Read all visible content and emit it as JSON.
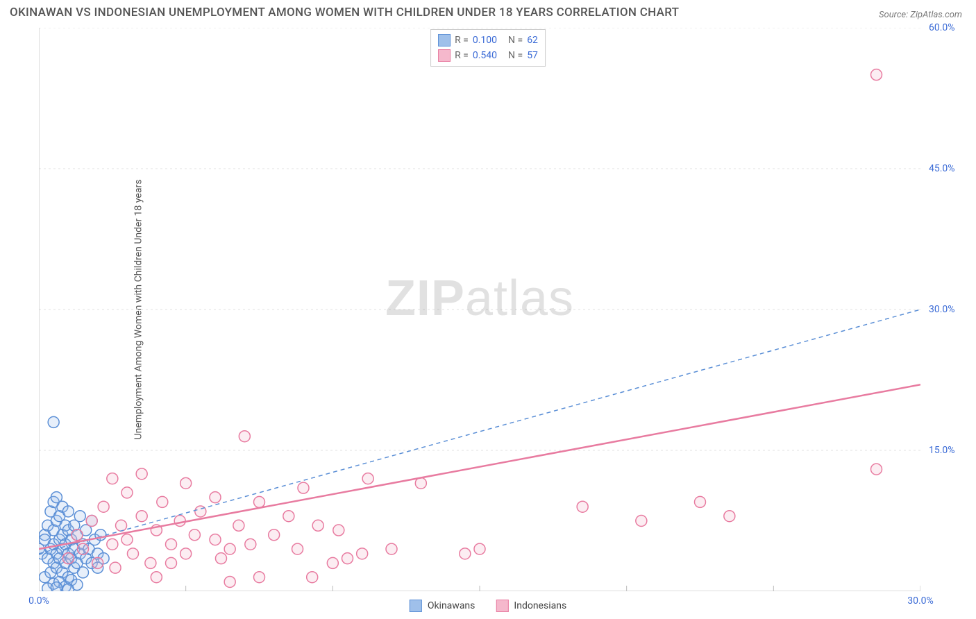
{
  "title": "OKINAWAN VS INDONESIAN UNEMPLOYMENT AMONG WOMEN WITH CHILDREN UNDER 18 YEARS CORRELATION CHART",
  "source": "Source: ZipAtlas.com",
  "ylabel": "Unemployment Among Women with Children Under 18 years",
  "watermark": {
    "bold": "ZIP",
    "rest": "atlas"
  },
  "chart": {
    "type": "scatter",
    "background_color": "#ffffff",
    "grid_color": "#e0e0e0",
    "axis_color": "#bbbbbb",
    "tick_label_color": "#3b6bd6",
    "tick_font_size": 14,
    "xlim": [
      0,
      30
    ],
    "ylim": [
      0,
      60
    ],
    "xticks": [
      0,
      30
    ],
    "xtick_labels": [
      "0.0%",
      "30.0%"
    ],
    "yticks": [
      15,
      30,
      45,
      60
    ],
    "ytick_labels": [
      "15.0%",
      "30.0%",
      "45.0%",
      "60.0%"
    ],
    "marker_radius": 8,
    "marker_stroke_width": 1.5,
    "marker_fill_opacity": 0.25,
    "series": [
      {
        "name": "Okinawans",
        "color_stroke": "#5b8fd6",
        "color_fill": "#9fc0ea",
        "R": "0.100",
        "N": "62",
        "trend": {
          "x1": 0,
          "y1": 4.0,
          "x2": 30,
          "y2": 30.0,
          "dash": "6,5",
          "width": 1.5
        },
        "points": [
          [
            0.0,
            4.5
          ],
          [
            0.1,
            4.0
          ],
          [
            0.2,
            6.0
          ],
          [
            0.2,
            1.5
          ],
          [
            0.2,
            5.5
          ],
          [
            0.3,
            3.5
          ],
          [
            0.3,
            7.0
          ],
          [
            0.4,
            2.0
          ],
          [
            0.4,
            4.5
          ],
          [
            0.4,
            8.5
          ],
          [
            0.5,
            3.0
          ],
          [
            0.5,
            5.0
          ],
          [
            0.5,
            6.5
          ],
          [
            0.5,
            9.5
          ],
          [
            0.6,
            2.5
          ],
          [
            0.6,
            4.0
          ],
          [
            0.6,
            7.5
          ],
          [
            0.6,
            10.0
          ],
          [
            0.7,
            3.5
          ],
          [
            0.7,
            5.5
          ],
          [
            0.7,
            8.0
          ],
          [
            0.8,
            2.0
          ],
          [
            0.8,
            4.5
          ],
          [
            0.8,
            6.0
          ],
          [
            0.8,
            9.0
          ],
          [
            0.9,
            3.0
          ],
          [
            0.9,
            5.0
          ],
          [
            0.9,
            7.0
          ],
          [
            1.0,
            1.5
          ],
          [
            1.0,
            4.0
          ],
          [
            1.0,
            6.5
          ],
          [
            1.0,
            8.5
          ],
          [
            1.1,
            3.5
          ],
          [
            1.1,
            5.5
          ],
          [
            1.2,
            2.5
          ],
          [
            1.2,
            4.5
          ],
          [
            1.2,
            7.0
          ],
          [
            1.3,
            3.0
          ],
          [
            1.3,
            6.0
          ],
          [
            1.4,
            4.0
          ],
          [
            1.4,
            8.0
          ],
          [
            1.5,
            2.0
          ],
          [
            1.5,
            5.0
          ],
          [
            1.6,
            3.5
          ],
          [
            1.6,
            6.5
          ],
          [
            1.7,
            4.5
          ],
          [
            1.8,
            3.0
          ],
          [
            1.8,
            7.5
          ],
          [
            1.9,
            5.5
          ],
          [
            2.0,
            4.0
          ],
          [
            2.0,
            2.5
          ],
          [
            2.1,
            6.0
          ],
          [
            2.2,
            3.5
          ],
          [
            0.5,
            0.8
          ],
          [
            0.7,
            1.0
          ],
          [
            0.9,
            0.5
          ],
          [
            1.1,
            1.2
          ],
          [
            1.3,
            0.7
          ],
          [
            0.3,
            0.3
          ],
          [
            0.6,
            0.4
          ],
          [
            1.0,
            0.2
          ],
          [
            0.5,
            18.0
          ]
        ]
      },
      {
        "name": "Indonesians",
        "color_stroke": "#e87ba0",
        "color_fill": "#f5b8cc",
        "R": "0.540",
        "N": "57",
        "trend": {
          "x1": 0,
          "y1": 4.5,
          "x2": 30,
          "y2": 22.0,
          "dash": "none",
          "width": 2.5
        },
        "points": [
          [
            1.0,
            3.5
          ],
          [
            1.3,
            6.0
          ],
          [
            1.5,
            4.5
          ],
          [
            1.8,
            7.5
          ],
          [
            2.0,
            3.0
          ],
          [
            2.2,
            9.0
          ],
          [
            2.5,
            5.0
          ],
          [
            2.5,
            12.0
          ],
          [
            2.6,
            2.5
          ],
          [
            2.8,
            7.0
          ],
          [
            3.0,
            5.5
          ],
          [
            3.0,
            10.5
          ],
          [
            3.2,
            4.0
          ],
          [
            3.5,
            8.0
          ],
          [
            3.5,
            12.5
          ],
          [
            3.8,
            3.0
          ],
          [
            4.0,
            6.5
          ],
          [
            4.0,
            1.5
          ],
          [
            4.2,
            9.5
          ],
          [
            4.5,
            5.0
          ],
          [
            4.8,
            7.5
          ],
          [
            5.0,
            4.0
          ],
          [
            5.0,
            11.5
          ],
          [
            5.3,
            6.0
          ],
          [
            5.5,
            8.5
          ],
          [
            6.0,
            5.5
          ],
          [
            6.0,
            10.0
          ],
          [
            6.2,
            3.5
          ],
          [
            6.5,
            1.0
          ],
          [
            6.8,
            7.0
          ],
          [
            7.0,
            16.5
          ],
          [
            7.2,
            5.0
          ],
          [
            7.5,
            9.5
          ],
          [
            7.5,
            1.5
          ],
          [
            8.0,
            6.0
          ],
          [
            8.5,
            8.0
          ],
          [
            8.8,
            4.5
          ],
          [
            9.0,
            11.0
          ],
          [
            9.3,
            1.5
          ],
          [
            9.5,
            7.0
          ],
          [
            10.0,
            3.0
          ],
          [
            10.2,
            6.5
          ],
          [
            10.5,
            3.5
          ],
          [
            11.0,
            4.0
          ],
          [
            11.2,
            12.0
          ],
          [
            12.0,
            4.5
          ],
          [
            13.0,
            11.5
          ],
          [
            14.5,
            4.0
          ],
          [
            15.0,
            4.5
          ],
          [
            18.5,
            9.0
          ],
          [
            20.5,
            7.5
          ],
          [
            22.5,
            9.5
          ],
          [
            23.5,
            8.0
          ],
          [
            28.5,
            13.0
          ],
          [
            28.5,
            55.0
          ],
          [
            4.5,
            3.0
          ],
          [
            6.5,
            4.5
          ]
        ]
      }
    ],
    "legend_top": {
      "r_label": "R =",
      "n_label": "N ="
    },
    "legend_bottom": [
      {
        "label": "Okinawans",
        "stroke": "#5b8fd6",
        "fill": "#9fc0ea"
      },
      {
        "label": "Indonesians",
        "stroke": "#e87ba0",
        "fill": "#f5b8cc"
      }
    ]
  }
}
